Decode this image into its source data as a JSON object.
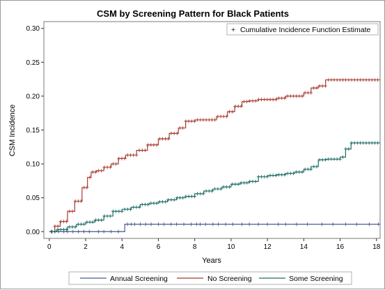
{
  "chart_data": {
    "type": "line",
    "title": "CSM by Screening Pattern for Black Patients",
    "xlabel": "Years",
    "ylabel": "CSM Incidence",
    "xlim": [
      -0.3,
      18.2
    ],
    "ylim": [
      -0.01,
      0.31
    ],
    "xticks": [
      "0",
      "2",
      "4",
      "6",
      "8",
      "10",
      "12",
      "14",
      "16",
      "18"
    ],
    "yticks": [
      "0.00",
      "0.05",
      "0.10",
      "0.15",
      "0.20",
      "0.25",
      "0.30"
    ],
    "inset_legend": {
      "symbol": "+",
      "label": "Cumulative Incidence Function Estimate",
      "placement": "top-right"
    },
    "legend_placement": "bottom",
    "grid": false,
    "series": [
      {
        "name": "Annual Screening",
        "color": "#4a5a8f",
        "x": [
          0,
          4.15,
          4.15,
          18.2
        ],
        "y": [
          0,
          0,
          0.011,
          0.011
        ],
        "censor_x": [
          0.1,
          0.3,
          0.5,
          0.8,
          1.0,
          1.3,
          1.6,
          1.9,
          2.2,
          2.7,
          3.0,
          3.4,
          3.8,
          4.3,
          4.5,
          4.7,
          5.0,
          5.3,
          5.6,
          6.0,
          6.3,
          6.7,
          7.0,
          7.4,
          7.8,
          8.1,
          8.3,
          8.6,
          9.0,
          9.3,
          9.7,
          10.1,
          10.6,
          11.0,
          11.5,
          12.0,
          12.6,
          13.0,
          13.6,
          14.2,
          15.0,
          15.6,
          16.3,
          16.9,
          17.6,
          18.1
        ]
      },
      {
        "name": "No Screening",
        "color": "#a83a2f",
        "x": [
          0,
          0.3,
          0.6,
          1.0,
          1.4,
          1.8,
          2.1,
          2.3,
          2.6,
          3.0,
          3.4,
          3.8,
          4.2,
          4.8,
          5.4,
          6.0,
          6.6,
          7.1,
          7.5,
          8.0,
          8.6,
          9.2,
          9.8,
          10.2,
          10.6,
          11.0,
          11.5,
          12.0,
          12.5,
          13.0,
          13.5,
          14.0,
          14.4,
          14.8,
          15.2,
          18.2
        ],
        "y": [
          0,
          0.008,
          0.015,
          0.03,
          0.045,
          0.065,
          0.08,
          0.088,
          0.09,
          0.095,
          0.1,
          0.108,
          0.113,
          0.12,
          0.128,
          0.137,
          0.145,
          0.153,
          0.163,
          0.165,
          0.165,
          0.17,
          0.177,
          0.185,
          0.192,
          0.193,
          0.195,
          0.195,
          0.197,
          0.2,
          0.2,
          0.205,
          0.212,
          0.215,
          0.224,
          0.224
        ]
      },
      {
        "name": "Some Screening",
        "color": "#1e6e66",
        "x": [
          0,
          0.4,
          1.0,
          1.5,
          2.0,
          2.5,
          3.0,
          3.5,
          4.0,
          4.5,
          5.0,
          5.5,
          6.0,
          6.5,
          7.0,
          7.5,
          8.0,
          8.5,
          9.0,
          9.5,
          10.0,
          10.5,
          11.0,
          11.5,
          12.0,
          12.5,
          13.0,
          13.5,
          14.0,
          14.4,
          14.8,
          15.2,
          15.6,
          16.0,
          16.3,
          16.6,
          18.2
        ],
        "y": [
          0,
          0.003,
          0.007,
          0.011,
          0.014,
          0.017,
          0.023,
          0.03,
          0.033,
          0.036,
          0.04,
          0.042,
          0.044,
          0.047,
          0.05,
          0.052,
          0.056,
          0.06,
          0.063,
          0.066,
          0.07,
          0.072,
          0.074,
          0.081,
          0.083,
          0.084,
          0.086,
          0.088,
          0.092,
          0.096,
          0.106,
          0.107,
          0.107,
          0.11,
          0.122,
          0.131,
          0.131
        ]
      }
    ]
  }
}
